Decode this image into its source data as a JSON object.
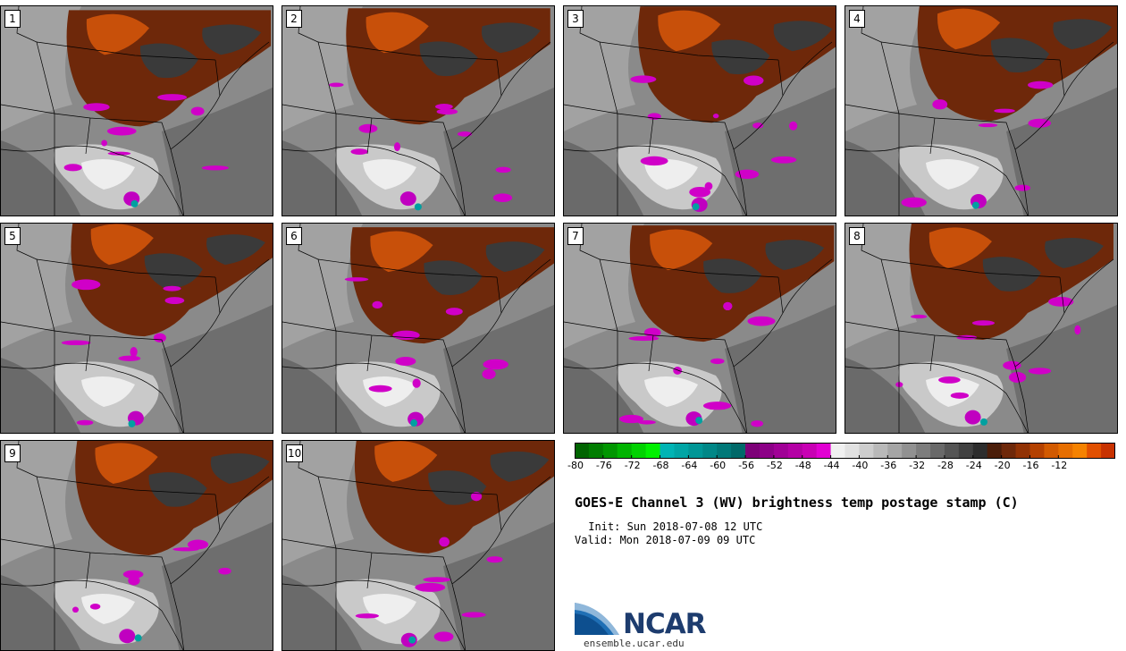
{
  "figure": {
    "title": "GOES-E Channel 3 (WV) brightness temp postage stamp (C)",
    "init_label": " Init: Sun 2018-07-08 12 UTC",
    "valid_label": "Valid: Mon 2018-07-09 09 UTC",
    "logo_text": "NCAR",
    "logo_url": "ensemble.ucar.edu"
  },
  "members": [
    {
      "label": "1"
    },
    {
      "label": "2"
    },
    {
      "label": "3"
    },
    {
      "label": "4"
    },
    {
      "label": "5"
    },
    {
      "label": "6"
    },
    {
      "label": "7"
    },
    {
      "label": "8"
    },
    {
      "label": "9"
    },
    {
      "label": "10"
    }
  ],
  "colorbar": {
    "min": -80,
    "max": -10,
    "step": 2,
    "tick_labels": [
      "-80",
      "-76",
      "-72",
      "-68",
      "-64",
      "-60",
      "-56",
      "-52",
      "-48",
      "-44",
      "-40",
      "-36",
      "-32",
      "-28",
      "-24",
      "-20",
      "-16",
      "-12"
    ],
    "colors": [
      "#006400",
      "#007d00",
      "#009600",
      "#00b400",
      "#00d200",
      "#00f000",
      "#00b4b4",
      "#00a5a5",
      "#009696",
      "#008787",
      "#007878",
      "#006969",
      "#7d0078",
      "#8c0087",
      "#a00096",
      "#b400a5",
      "#c800b4",
      "#e100d2",
      "#f0f0f0",
      "#e1e1e1",
      "#cdcdcd",
      "#b9b9b9",
      "#a5a5a5",
      "#919191",
      "#7d7d7d",
      "#696969",
      "#555555",
      "#414141",
      "#2d2d2d",
      "#4b1e0a",
      "#6e280a",
      "#913205",
      "#b44100",
      "#d25a00",
      "#e66e00",
      "#f58200",
      "#e15000",
      "#c83200"
    ]
  }
}
